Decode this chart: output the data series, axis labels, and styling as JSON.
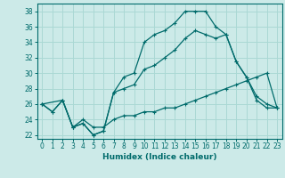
{
  "xlabel": "Humidex (Indice chaleur)",
  "background_color": "#cceae8",
  "grid_color": "#aad8d4",
  "line_color": "#006b6b",
  "xlim": [
    -0.5,
    23.5
  ],
  "ylim": [
    21.5,
    39.0
  ],
  "xticks": [
    0,
    1,
    2,
    3,
    4,
    5,
    6,
    7,
    8,
    9,
    10,
    11,
    12,
    13,
    14,
    15,
    16,
    17,
    18,
    19,
    20,
    21,
    22,
    23
  ],
  "yticks": [
    22,
    24,
    26,
    28,
    30,
    32,
    34,
    36,
    38
  ],
  "line1_x": [
    0,
    1,
    2,
    3,
    4,
    5,
    6,
    7,
    8,
    9,
    10,
    11,
    12,
    13,
    14,
    15,
    16,
    17,
    18,
    19,
    20,
    21,
    22,
    23
  ],
  "line1_y": [
    26,
    25,
    26.5,
    23,
    23.5,
    22,
    22.5,
    27.5,
    29.5,
    30,
    34,
    35,
    35.5,
    36.5,
    38,
    38,
    38,
    36,
    35,
    31.5,
    29.5,
    27,
    26,
    25.5
  ],
  "line2_x": [
    0,
    2,
    3,
    4,
    5,
    6,
    7,
    8,
    9,
    10,
    11,
    12,
    13,
    14,
    15,
    16,
    17,
    18,
    19,
    20,
    21,
    22,
    23
  ],
  "line2_y": [
    26,
    26.5,
    23,
    24,
    23,
    23,
    24,
    24.5,
    24.5,
    25,
    25,
    25.5,
    25.5,
    26,
    26.5,
    27,
    27.5,
    28,
    28.5,
    29,
    29.5,
    30,
    25.5
  ],
  "line3_x": [
    0,
    1,
    2,
    3,
    4,
    5,
    6,
    7,
    8,
    9,
    10,
    11,
    12,
    13,
    14,
    15,
    16,
    17,
    18,
    19,
    20,
    21,
    22,
    23
  ],
  "line3_y": [
    26,
    25,
    26.5,
    23,
    23.5,
    22,
    22.5,
    27.5,
    28,
    28.5,
    30.5,
    31,
    32,
    33,
    34.5,
    35.5,
    35,
    34.5,
    35,
    31.5,
    29.5,
    26.5,
    25.5,
    25.5
  ]
}
